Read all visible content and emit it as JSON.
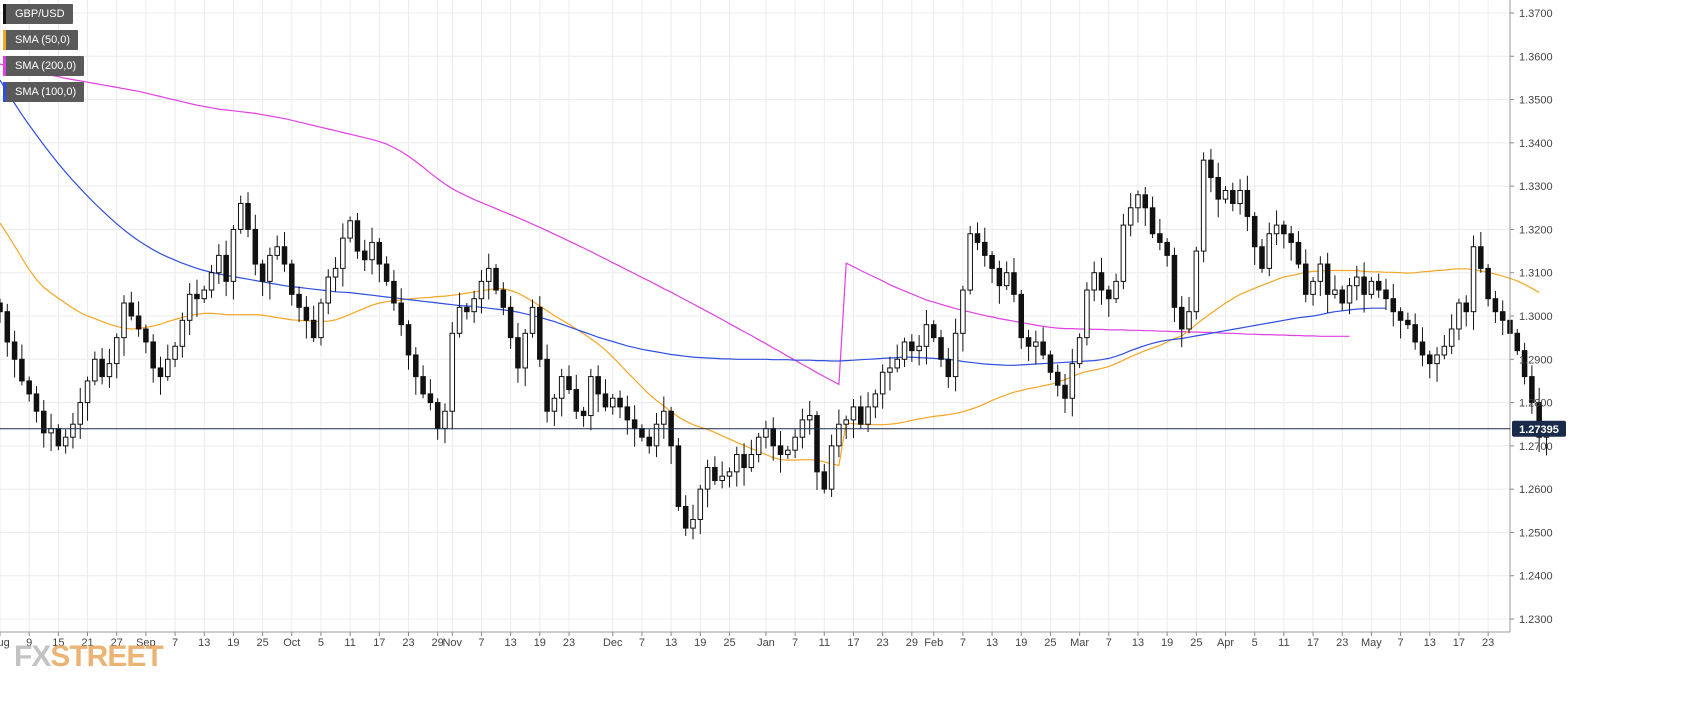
{
  "chart_data": {
    "type": "candlestick",
    "symbol": "GBP/USD",
    "legend": [
      {
        "label": "GBP/USD",
        "color": "#111111"
      },
      {
        "label": "SMA (50,0)",
        "color": "#f5a623"
      },
      {
        "label": "SMA (200,0)",
        "color": "#e040e0"
      },
      {
        "label": "SMA (100,0)",
        "color": "#2f4fe0"
      }
    ],
    "last_price": "1.27395",
    "last_value": 1.27395,
    "ylim": [
      1.227,
      1.373
    ],
    "xlim": [
      0,
      207
    ],
    "y_ticks": [
      {
        "value": 1.37,
        "label": "1.3700"
      },
      {
        "value": 1.36,
        "label": "1.3600"
      },
      {
        "value": 1.35,
        "label": "1.3500"
      },
      {
        "value": 1.34,
        "label": "1.3400"
      },
      {
        "value": 1.33,
        "label": "1.3300"
      },
      {
        "value": 1.32,
        "label": "1.3200"
      },
      {
        "value": 1.31,
        "label": "1.3100"
      },
      {
        "value": 1.3,
        "label": "1.3000"
      },
      {
        "value": 1.29,
        "label": "1.2900"
      },
      {
        "value": 1.28,
        "label": "1.2800"
      },
      {
        "value": 1.27,
        "label": "1.2700"
      },
      {
        "value": 1.26,
        "label": "1.2600"
      },
      {
        "value": 1.25,
        "label": "1.2500"
      },
      {
        "value": 1.24,
        "label": "1.2400"
      },
      {
        "value": 1.23,
        "label": "1.2300"
      }
    ],
    "x_ticks": [
      {
        "i": 0,
        "label": "Aug"
      },
      {
        "i": 4,
        "label": "9"
      },
      {
        "i": 8,
        "label": "15"
      },
      {
        "i": 12,
        "label": "21"
      },
      {
        "i": 16,
        "label": "27"
      },
      {
        "i": 20,
        "label": "Sep"
      },
      {
        "i": 24,
        "label": "7"
      },
      {
        "i": 28,
        "label": "13"
      },
      {
        "i": 32,
        "label": "19"
      },
      {
        "i": 36,
        "label": "25"
      },
      {
        "i": 40,
        "label": "Oct"
      },
      {
        "i": 44,
        "label": "5"
      },
      {
        "i": 48,
        "label": "11"
      },
      {
        "i": 52,
        "label": "17"
      },
      {
        "i": 56,
        "label": "23"
      },
      {
        "i": 60,
        "label": "29"
      },
      {
        "i": 62,
        "label": "Nov"
      },
      {
        "i": 66,
        "label": "7"
      },
      {
        "i": 70,
        "label": "13"
      },
      {
        "i": 74,
        "label": "19"
      },
      {
        "i": 78,
        "label": "23"
      },
      {
        "i": 84,
        "label": "Dec"
      },
      {
        "i": 88,
        "label": "7"
      },
      {
        "i": 92,
        "label": "13"
      },
      {
        "i": 96,
        "label": "19"
      },
      {
        "i": 100,
        "label": "25"
      },
      {
        "i": 105,
        "label": "Jan"
      },
      {
        "i": 109,
        "label": "7"
      },
      {
        "i": 113,
        "label": "11"
      },
      {
        "i": 117,
        "label": "17"
      },
      {
        "i": 121,
        "label": "23"
      },
      {
        "i": 125,
        "label": "29"
      },
      {
        "i": 128,
        "label": "Feb"
      },
      {
        "i": 132,
        "label": "7"
      },
      {
        "i": 136,
        "label": "13"
      },
      {
        "i": 140,
        "label": "19"
      },
      {
        "i": 144,
        "label": "25"
      },
      {
        "i": 148,
        "label": "Mar"
      },
      {
        "i": 152,
        "label": "7"
      },
      {
        "i": 156,
        "label": "13"
      },
      {
        "i": 160,
        "label": "19"
      },
      {
        "i": 164,
        "label": "25"
      },
      {
        "i": 168,
        "label": "Apr"
      },
      {
        "i": 172,
        "label": "5"
      },
      {
        "i": 176,
        "label": "11"
      },
      {
        "i": 180,
        "label": "17"
      },
      {
        "i": 184,
        "label": "23"
      },
      {
        "i": 188,
        "label": "May"
      },
      {
        "i": 192,
        "label": "7"
      },
      {
        "i": 196,
        "label": "13"
      },
      {
        "i": 200,
        "label": "17"
      },
      {
        "i": 204,
        "label": "23"
      }
    ],
    "close": [
      1.301,
      1.294,
      1.29,
      1.285,
      1.282,
      1.278,
      1.273,
      1.274,
      1.27,
      1.272,
      1.275,
      1.28,
      1.285,
      1.29,
      1.286,
      1.289,
      1.295,
      1.303,
      1.3,
      1.297,
      1.294,
      1.288,
      1.286,
      1.29,
      1.293,
      1.299,
      1.305,
      1.304,
      1.306,
      1.31,
      1.314,
      1.308,
      1.32,
      1.326,
      1.32,
      1.312,
      1.308,
      1.314,
      1.316,
      1.312,
      1.305,
      1.302,
      1.299,
      1.295,
      1.303,
      1.309,
      1.311,
      1.318,
      1.322,
      1.315,
      1.313,
      1.317,
      1.312,
      1.308,
      1.303,
      1.298,
      1.291,
      1.286,
      1.282,
      1.28,
      1.274,
      1.278,
      1.296,
      1.302,
      1.301,
      1.304,
      1.308,
      1.311,
      1.306,
      1.302,
      1.295,
      1.288,
      1.296,
      1.302,
      1.29,
      1.278,
      1.281,
      1.286,
      1.283,
      1.278,
      1.277,
      1.286,
      1.282,
      1.279,
      1.281,
      1.279,
      1.276,
      1.274,
      1.272,
      1.27,
      1.275,
      1.278,
      1.27,
      1.256,
      1.251,
      1.253,
      1.26,
      1.265,
      1.262,
      1.263,
      1.264,
      1.268,
      1.265,
      1.268,
      1.272,
      1.274,
      1.27,
      1.268,
      1.269,
      1.272,
      1.276,
      1.277,
      1.264,
      1.26,
      1.27,
      1.275,
      1.276,
      1.279,
      1.275,
      1.279,
      1.282,
      1.287,
      1.288,
      1.29,
      1.294,
      1.292,
      1.293,
      1.298,
      1.295,
      1.29,
      1.286,
      1.296,
      1.306,
      1.319,
      1.317,
      1.314,
      1.311,
      1.307,
      1.31,
      1.305,
      1.295,
      1.293,
      1.294,
      1.291,
      1.287,
      1.284,
      1.281,
      1.289,
      1.295,
      1.306,
      1.31,
      1.306,
      1.304,
      1.308,
      1.321,
      1.325,
      1.328,
      1.325,
      1.319,
      1.317,
      1.314,
      1.302,
      1.297,
      1.301,
      1.315,
      1.336,
      1.332,
      1.327,
      1.329,
      1.326,
      1.329,
      1.323,
      1.316,
      1.311,
      1.319,
      1.321,
      1.319,
      1.317,
      1.312,
      1.305,
      1.308,
      1.312,
      1.305,
      1.306,
      1.303,
      1.307,
      1.309,
      1.305,
      1.308,
      1.306,
      1.304,
      1.301,
      1.299,
      1.298,
      1.294,
      1.291,
      1.289,
      1.291,
      1.293,
      1.297,
      1.303,
      1.301,
      1.316,
      1.311,
      1.304,
      1.301,
      1.299,
      1.296,
      1.292,
      1.286,
      1.28,
      1.272,
      1.2739
    ],
    "sma50": [
      1.3215,
      1.3189,
      1.3162,
      1.3134,
      1.3107,
      1.3084,
      1.3066,
      1.3053,
      1.3041,
      1.3029,
      1.3018,
      1.3008,
      1.3,
      1.2994,
      1.2987,
      1.2981,
      1.2976,
      1.2972,
      1.297,
      1.2971,
      1.2974,
      1.2977,
      1.2981,
      1.2987,
      1.2992,
      1.2997,
      1.3001,
      1.3004,
      1.3006,
      1.3006,
      1.3005,
      1.3003,
      1.3003,
      1.3003,
      1.3003,
      1.3003,
      1.3002,
      1.2999,
      1.2996,
      1.2994,
      1.2991,
      1.299,
      1.2989,
      1.2988,
      1.2987,
      1.2988,
      1.2991,
      1.2997,
      1.3004,
      1.3011,
      1.3018,
      1.3025,
      1.303,
      1.3033,
      1.3035,
      1.3037,
      1.3039,
      1.3041,
      1.3042,
      1.3043,
      1.3045,
      1.3046,
      1.3048,
      1.305,
      1.3053,
      1.3056,
      1.3058,
      1.3061,
      1.3063,
      1.3063,
      1.3059,
      1.3053,
      1.3044,
      1.3034,
      1.3023,
      1.3012,
      1.3001,
      1.2991,
      1.2981,
      1.297,
      1.2959,
      1.2947,
      1.2935,
      1.2921,
      1.2905,
      1.2888,
      1.287,
      1.2853,
      1.2836,
      1.2819,
      1.2805,
      1.2792,
      1.2779,
      1.2767,
      1.2757,
      1.2749,
      1.2743,
      1.2738,
      1.2731,
      1.2723,
      1.2716,
      1.2708,
      1.2701,
      1.2694,
      1.2687,
      1.268,
      1.2673,
      1.2668,
      1.2667,
      1.2667,
      1.2668,
      1.2668,
      1.2667,
      1.2663,
      1.2658,
      1.2655,
      1.2753,
      1.2751,
      1.275,
      1.2749,
      1.2749,
      1.2749,
      1.275,
      1.2752,
      1.2755,
      1.2759,
      1.2762,
      1.2765,
      1.2768,
      1.277,
      1.2772,
      1.2775,
      1.2779,
      1.2784,
      1.279,
      1.2797,
      1.2805,
      1.2812,
      1.2818,
      1.2824,
      1.2828,
      1.2832,
      1.2835,
      1.2839,
      1.2842,
      1.2847,
      1.2853,
      1.286,
      1.2867,
      1.2872,
      1.2875,
      1.2879,
      1.2883,
      1.289,
      1.2898,
      1.2906,
      1.2913,
      1.292,
      1.2926,
      1.2932,
      1.294,
      1.2948,
      1.2954,
      1.2966,
      1.2981,
      1.2994,
      1.3006,
      1.3018,
      1.303,
      1.304,
      1.305,
      1.3057,
      1.3064,
      1.3071,
      1.3077,
      1.3084,
      1.309,
      1.3093,
      1.3097,
      1.3101,
      1.3103,
      1.3104,
      1.3105,
      1.3105,
      1.3105,
      1.3105,
      1.3105,
      1.3103,
      1.3102,
      1.3102,
      1.3101,
      1.3101,
      1.31,
      1.3099,
      1.31,
      1.3102,
      1.3103,
      1.3105,
      1.3106,
      1.3108,
      1.3109,
      1.3109,
      1.3107,
      1.3104,
      1.3101,
      1.3097,
      1.3092,
      1.3087,
      1.3081,
      1.3073,
      1.3064,
      1.3054
    ],
    "sma100": [
      1.3545,
      1.3517,
      1.3491,
      1.3465,
      1.3441,
      1.3418,
      1.3395,
      1.3373,
      1.3352,
      1.3332,
      1.3313,
      1.3295,
      1.3277,
      1.326,
      1.3244,
      1.3228,
      1.3213,
      1.3199,
      1.3186,
      1.3174,
      1.3163,
      1.3153,
      1.3144,
      1.3136,
      1.3129,
      1.3122,
      1.3116,
      1.311,
      1.3105,
      1.3101,
      1.3097,
      1.3094,
      1.3091,
      1.3088,
      1.3085,
      1.3082,
      1.3079,
      1.3076,
      1.3073,
      1.307,
      1.3068,
      1.3066,
      1.3064,
      1.3062,
      1.306,
      1.3058,
      1.3056,
      1.3055,
      1.3054,
      1.3052,
      1.305,
      1.3048,
      1.3046,
      1.3044,
      1.3042,
      1.304,
      1.3038,
      1.3036,
      1.3034,
      1.3032,
      1.303,
      1.3028,
      1.3026,
      1.3024,
      1.3023,
      1.3022,
      1.302,
      1.3018,
      1.3016,
      1.3014,
      1.3012,
      1.3009,
      1.3005,
      1.3001,
      1.2997,
      1.2992,
      1.2987,
      1.2981,
      1.2975,
      1.2969,
      1.2963,
      1.2957,
      1.2951,
      1.2946,
      1.2941,
      1.2936,
      1.2931,
      1.2927,
      1.2923,
      1.292,
      1.2917,
      1.2914,
      1.2911,
      1.2909,
      1.2907,
      1.2905,
      1.2904,
      1.2903,
      1.2902,
      1.2901,
      1.2901,
      1.29,
      1.29,
      1.29,
      1.29,
      1.29,
      1.2899,
      1.2899,
      1.2899,
      1.2898,
      1.2898,
      1.2898,
      1.2897,
      1.2897,
      1.2896,
      1.2896,
      1.2897,
      1.2898,
      1.2899,
      1.29,
      1.2901,
      1.2902,
      1.2903,
      1.2904,
      1.2905,
      1.2905,
      1.2904,
      1.2903,
      1.2902,
      1.2901,
      1.29,
      1.2898,
      1.2895,
      1.2893,
      1.2891,
      1.2889,
      1.2888,
      1.2887,
      1.2886,
      1.2886,
      1.2887,
      1.2888,
      1.2889,
      1.289,
      1.2891,
      1.2892,
      1.2893,
      1.2894,
      1.2895,
      1.2896,
      1.2897,
      1.2899,
      1.2902,
      1.2907,
      1.2913,
      1.292,
      1.2926,
      1.2932,
      1.2937,
      1.2941,
      1.2944,
      1.2946,
      1.2948,
      1.2951,
      1.2954,
      1.2957,
      1.296,
      1.2963,
      1.2966,
      1.2969,
      1.2972,
      1.2975,
      1.2978,
      1.2981,
      1.2984,
      1.2987,
      1.299,
      1.2993,
      1.2996,
      1.2998,
      1.3,
      1.3003,
      1.3007,
      1.301,
      1.3012,
      1.3014,
      1.3016,
      1.3017,
      1.3018,
      1.3018,
      1.3018
    ],
    "sma200": [
      1.3582,
      1.3578,
      1.3574,
      1.3571,
      1.3567,
      1.3563,
      1.356,
      1.3556,
      1.3553,
      1.3549,
      1.3546,
      1.3543,
      1.354,
      1.3537,
      1.3534,
      1.3531,
      1.3528,
      1.3525,
      1.3522,
      1.3519,
      1.3515,
      1.3511,
      1.3507,
      1.3503,
      1.3499,
      1.3495,
      1.3491,
      1.3487,
      1.3484,
      1.3481,
      1.3478,
      1.3476,
      1.3474,
      1.3472,
      1.347,
      1.3468,
      1.3465,
      1.3462,
      1.3459,
      1.3456,
      1.3452,
      1.3448,
      1.3444,
      1.344,
      1.3436,
      1.3432,
      1.3428,
      1.3424,
      1.342,
      1.3416,
      1.3412,
      1.3408,
      1.3403,
      1.3397,
      1.3389,
      1.338,
      1.3369,
      1.3357,
      1.3344,
      1.333,
      1.3317,
      1.3305,
      1.3294,
      1.3285,
      1.3277,
      1.3269,
      1.3262,
      1.3255,
      1.3248,
      1.3241,
      1.3234,
      1.3227,
      1.322,
      1.3212,
      1.3205,
      1.3197,
      1.3189,
      1.3181,
      1.3173,
      1.3165,
      1.3157,
      1.3149,
      1.314,
      1.3132,
      1.3123,
      1.3115,
      1.3106,
      1.3098,
      1.3089,
      1.3081,
      1.3072,
      1.3063,
      1.3055,
      1.3046,
      1.3037,
      1.3028,
      1.3019,
      1.301,
      1.3001,
      1.2992,
      1.2982,
      1.2973,
      1.2964,
      1.2955,
      1.2945,
      1.2936,
      1.2926,
      1.2917,
      1.2907,
      1.2898,
      1.2888,
      1.2879,
      1.2869,
      1.286,
      1.2851,
      1.2842,
      1.3122,
      1.3114,
      1.3105,
      1.3097,
      1.3089,
      1.3081,
      1.3072,
      1.3065,
      1.3058,
      1.3051,
      1.3044,
      1.3037,
      1.3032,
      1.3027,
      1.3022,
      1.3017,
      1.3013,
      1.3009,
      1.3005,
      1.3001,
      1.2998,
      1.2994,
      1.2991,
      1.2988,
      1.2985,
      1.2982,
      1.2979,
      1.2976,
      1.2974,
      1.2972,
      1.2971,
      1.2971,
      1.297,
      1.297,
      1.2969,
      1.2969,
      1.2968,
      1.2968,
      1.2968,
      1.2967,
      1.2967,
      1.2966,
      1.2966,
      1.2965,
      1.2965,
      1.2964,
      1.2964,
      1.2963,
      1.2963,
      1.2962,
      1.2962,
      1.2961,
      1.296,
      1.296,
      1.2959,
      1.2958,
      1.2958,
      1.2957,
      1.2957,
      1.2956,
      1.2956,
      1.2955,
      1.2955,
      1.2954,
      1.2954,
      1.2953,
      1.2953,
      1.2953,
      1.2953,
      1.2953
    ]
  },
  "watermark": {
    "fx": "FX",
    "rest": "STREET"
  }
}
